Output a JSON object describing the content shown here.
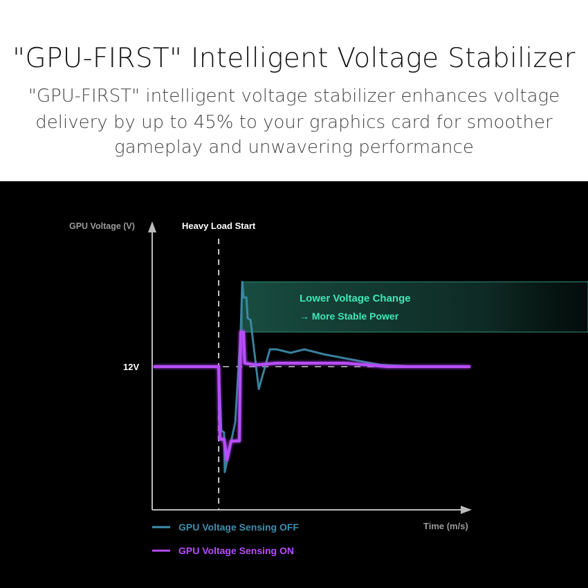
{
  "header": {
    "title": "\"GPU-FIRST\" Intelligent Voltage Stabilizer",
    "subtitle_lines": [
      "\"GPU-FIRST\" intelligent voltage stabilizer enhances voltage",
      "delivery by up to 45% to your graphics card for smoother",
      "gameplay and unwavering performance"
    ]
  },
  "chart_data": {
    "type": "line",
    "title": "",
    "ylabel": "GPU Voltage (V)",
    "xlabel": "Time (m/s)",
    "y_tick_labels": [
      "12V"
    ],
    "y_reference": 12,
    "xlim": [
      0,
      100
    ],
    "ylim": [
      11.2,
      12.8
    ],
    "grid": false,
    "legend_position": "bottom-left",
    "annotations": {
      "event_label": "Heavy Load Start",
      "event_x": 20.9,
      "highlight_lines": [
        "Lower Voltage Change",
        "→ More Stable Power"
      ],
      "highlight_range": [
        12.2,
        12.49
      ]
    },
    "series": [
      {
        "name": "GPU Voltage Sensing OFF",
        "color": "#3f8fb0",
        "x": [
          0.4,
          20.9,
          21.7,
          22.6,
          22.8,
          26.1,
          27.8,
          28.3,
          28.7,
          29.6,
          30.0,
          30.9,
          33.5,
          37.0,
          39.1,
          43.5,
          47.8,
          54.3,
          63.0,
          71.7,
          82.6,
          100
        ],
        "y": [
          12.0,
          12.0,
          11.63,
          11.62,
          11.39,
          11.68,
          12.2,
          12.49,
          12.4,
          12.4,
          12.28,
          12.27,
          11.87,
          12.1,
          12.1,
          12.08,
          12.1,
          12.07,
          12.04,
          12.01,
          12.0,
          12.0
        ]
      },
      {
        "name": "GPU Voltage Sensing ON",
        "color": "#b84dff",
        "x": [
          0.4,
          20.9,
          21.3,
          22.6,
          23.5,
          24.8,
          27.4,
          27.8,
          28.7,
          29.1,
          32.6,
          39.1,
          47.8,
          60.9,
          73.9,
          100
        ],
        "y": [
          12.0,
          12.0,
          11.58,
          11.58,
          11.46,
          11.57,
          11.57,
          12.2,
          12.2,
          12.02,
          12.01,
          12.02,
          12.02,
          12.02,
          12.0,
          12.0
        ]
      }
    ]
  },
  "colors": {
    "background": "#000000",
    "highlight_text": "#3de8b8",
    "axis": "#bbbbbb"
  }
}
